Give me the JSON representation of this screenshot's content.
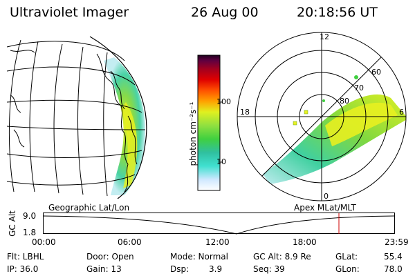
{
  "header": {
    "instrument": "Ultraviolet Imager",
    "date": "26 Aug 00",
    "time": "20:18:56 UT"
  },
  "colorbar": {
    "unit_label": "photon cm⁻²s⁻¹",
    "ticks": [
      "100",
      "10"
    ],
    "scale": "log",
    "colors": [
      "#ffffff",
      "#d0e8ff",
      "#40e0d0",
      "#30c0a0",
      "#40d040",
      "#90e040",
      "#e0f020",
      "#ffa000",
      "#ff5000",
      "#e00000",
      "#a00020",
      "#600040",
      "#200020"
    ]
  },
  "left_map": {
    "label": "Geographic Lat/Lon"
  },
  "right_map": {
    "label": "Apex MLat/MLT",
    "mlt_labels": [
      "12",
      "18",
      "6",
      "0"
    ],
    "lat_labels": [
      "60",
      "70",
      "80"
    ]
  },
  "orbit_plot": {
    "ylabel": "GC Alt",
    "y_ticks": [
      "9.0",
      "1.8"
    ],
    "x_ticks": [
      "00:00",
      "06:00",
      "12:00",
      "18:00",
      "23:59"
    ],
    "marker_color": "#cc0000"
  },
  "status": {
    "flt": "Flt: LBHL",
    "ip": "IP: 36.0",
    "door": "Door: Open",
    "gain": "Gain: 13",
    "mode": "Mode: Normal",
    "dsp_label": "Dsp:",
    "dsp_value": "3.9",
    "gc_alt": "GC Alt: 8.9 Re",
    "seq": "Seq: 39",
    "glat_label": "GLat:",
    "glat_value": "55.4",
    "glon_label": "GLon:",
    "glon_value": "78.0"
  }
}
